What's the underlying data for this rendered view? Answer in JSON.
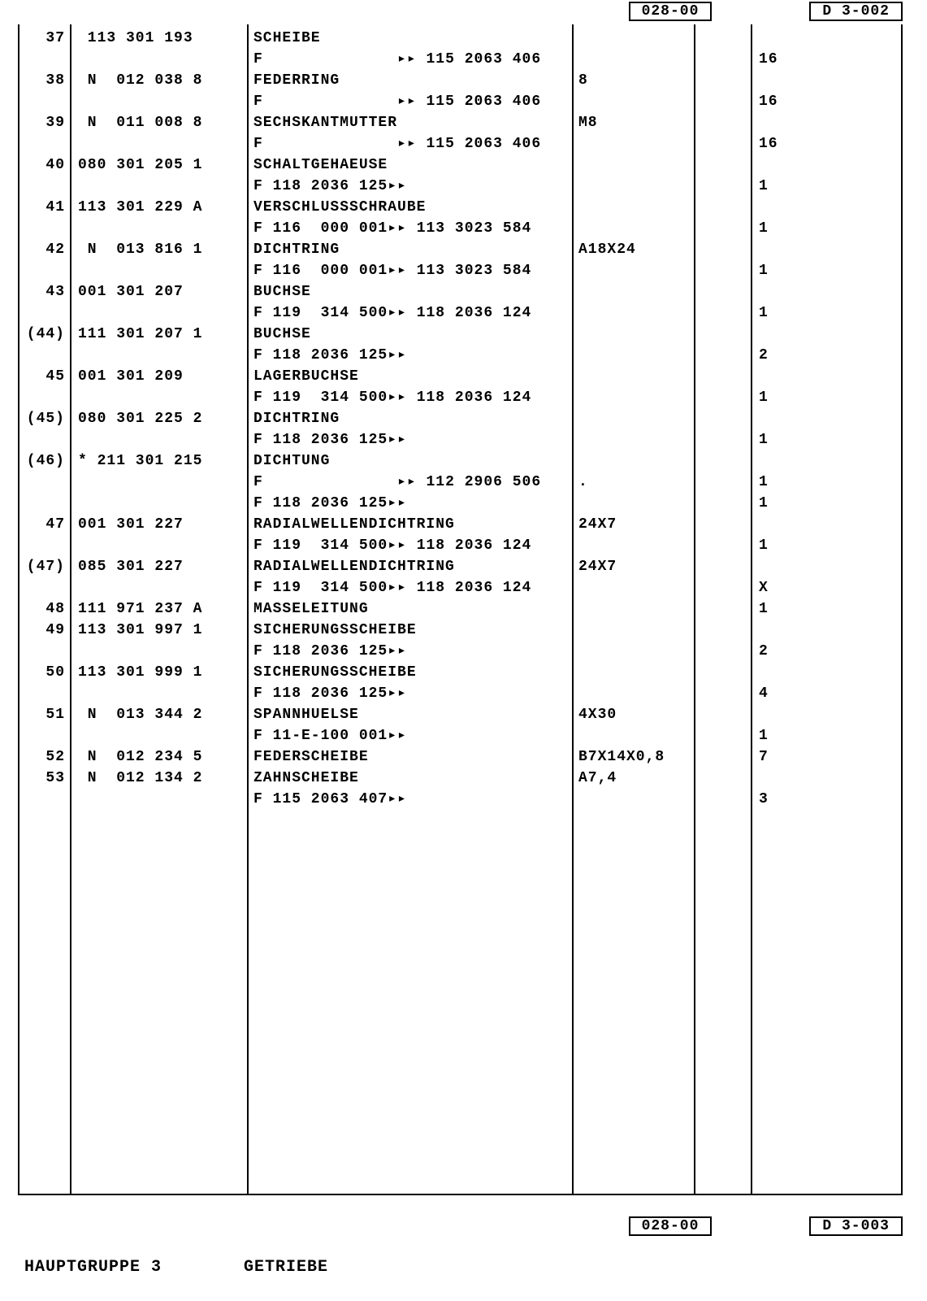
{
  "header": {
    "code1": "028-00",
    "code2": "D  3-002"
  },
  "footerCodes": {
    "code1": "028-00",
    "code2": "D  3-003"
  },
  "footer": {
    "group": "HAUPTGRUPPE   3",
    "title": "GETRIEBE"
  },
  "rows": [
    {
      "pos": "37",
      "part": " 113 301 193",
      "desc": "SCHEIBE",
      "spec": "",
      "x": "",
      "qty": ""
    },
    {
      "pos": "",
      "part": "",
      "desc": "F              ▸▸ 115 2063 406",
      "spec": "",
      "x": "",
      "qty": "16"
    },
    {
      "pos": "38",
      "part": " N  012 038 8",
      "desc": "FEDERRING",
      "spec": "8",
      "x": "",
      "qty": ""
    },
    {
      "pos": "",
      "part": "",
      "desc": "F              ▸▸ 115 2063 406",
      "spec": "",
      "x": "",
      "qty": "16"
    },
    {
      "pos": "39",
      "part": " N  011 008 8",
      "desc": "SECHSKANTMUTTER",
      "spec": "M8",
      "x": "",
      "qty": ""
    },
    {
      "pos": "",
      "part": "",
      "desc": "F              ▸▸ 115 2063 406",
      "spec": "",
      "x": "",
      "qty": "16"
    },
    {
      "pos": "40",
      "part": "080 301 205 1",
      "desc": "SCHALTGEHAEUSE",
      "spec": "",
      "x": "",
      "qty": ""
    },
    {
      "pos": "",
      "part": "",
      "desc": "F 118 2036 125▸▸",
      "spec": "",
      "x": "",
      "qty": "1"
    },
    {
      "pos": "41",
      "part": "113 301 229 A",
      "desc": "VERSCHLUSSSCHRAUBE",
      "spec": "",
      "x": "",
      "qty": ""
    },
    {
      "pos": "",
      "part": "",
      "desc": "F 116  000 001▸▸ 113 3023 584",
      "spec": "",
      "x": "",
      "qty": "1"
    },
    {
      "pos": "42",
      "part": " N  013 816 1",
      "desc": "DICHTRING",
      "spec": "A18X24",
      "x": "",
      "qty": ""
    },
    {
      "pos": "",
      "part": "",
      "desc": "F 116  000 001▸▸ 113 3023 584",
      "spec": "",
      "x": "",
      "qty": "1"
    },
    {
      "pos": "43",
      "part": "001 301 207",
      "desc": "BUCHSE",
      "spec": "",
      "x": "",
      "qty": ""
    },
    {
      "pos": "",
      "part": "",
      "desc": "F 119  314 500▸▸ 118 2036 124",
      "spec": "",
      "x": "",
      "qty": "1"
    },
    {
      "pos": "(44)",
      "part": "111 301 207 1",
      "desc": "BUCHSE",
      "spec": "",
      "x": "",
      "qty": ""
    },
    {
      "pos": "",
      "part": "",
      "desc": "F 118 2036 125▸▸",
      "spec": "",
      "x": "",
      "qty": "2"
    },
    {
      "pos": "45",
      "part": "001 301 209",
      "desc": "LAGERBUCHSE",
      "spec": "",
      "x": "",
      "qty": ""
    },
    {
      "pos": "",
      "part": "",
      "desc": "F 119  314 500▸▸ 118 2036 124",
      "spec": "",
      "x": "",
      "qty": "1"
    },
    {
      "pos": "(45)",
      "part": "080 301 225 2",
      "desc": "DICHTRING",
      "spec": "",
      "x": "",
      "qty": ""
    },
    {
      "pos": "",
      "part": "",
      "desc": "F 118 2036 125▸▸",
      "spec": "",
      "x": "",
      "qty": "1"
    },
    {
      "pos": "(46)",
      "part": "* 211 301 215",
      "desc": "DICHTUNG",
      "spec": "",
      "x": "",
      "qty": ""
    },
    {
      "pos": "",
      "part": "",
      "desc": "F              ▸▸ 112 2906 506",
      "spec": ".",
      "x": "",
      "qty": "1"
    },
    {
      "pos": "",
      "part": "",
      "desc": "F 118 2036 125▸▸",
      "spec": "",
      "x": "",
      "qty": "1"
    },
    {
      "pos": "47",
      "part": "001 301 227",
      "desc": "RADIALWELLENDICHTRING",
      "spec": "24X7",
      "x": "",
      "qty": ""
    },
    {
      "pos": "",
      "part": "",
      "desc": "F 119  314 500▸▸ 118 2036 124",
      "spec": "",
      "x": "",
      "qty": "1"
    },
    {
      "pos": "(47)",
      "part": "085 301 227",
      "desc": "RADIALWELLENDICHTRING",
      "spec": "24X7",
      "x": "",
      "qty": ""
    },
    {
      "pos": "",
      "part": "",
      "desc": "F 119  314 500▸▸ 118 2036 124",
      "spec": "",
      "x": "",
      "qty": "X"
    },
    {
      "pos": "48",
      "part": "111 971 237 A",
      "desc": "MASSELEITUNG",
      "spec": "",
      "x": "",
      "qty": "1"
    },
    {
      "pos": "49",
      "part": "113 301 997 1",
      "desc": "SICHERUNGSSCHEIBE",
      "spec": "",
      "x": "",
      "qty": ""
    },
    {
      "pos": "",
      "part": "",
      "desc": "F 118 2036 125▸▸",
      "spec": "",
      "x": "",
      "qty": "2"
    },
    {
      "pos": "50",
      "part": "113 301 999 1",
      "desc": "SICHERUNGSSCHEIBE",
      "spec": "",
      "x": "",
      "qty": ""
    },
    {
      "pos": "",
      "part": "",
      "desc": "F 118 2036 125▸▸",
      "spec": "",
      "x": "",
      "qty": "4"
    },
    {
      "pos": "51",
      "part": " N  013 344 2",
      "desc": "SPANNHUELSE",
      "spec": "4X30",
      "x": "",
      "qty": ""
    },
    {
      "pos": "",
      "part": "",
      "desc": "F 11-E-100 001▸▸",
      "spec": "",
      "x": "",
      "qty": "1"
    },
    {
      "pos": "52",
      "part": " N  012 234 5",
      "desc": "FEDERSCHEIBE",
      "spec": "B7X14X0,8",
      "x": "",
      "qty": "7"
    },
    {
      "pos": "53",
      "part": " N  012 134 2",
      "desc": "ZAHNSCHEIBE",
      "spec": "A7,4",
      "x": "",
      "qty": ""
    },
    {
      "pos": "",
      "part": "",
      "desc": "F 115 2063 407▸▸",
      "spec": "",
      "x": "",
      "qty": "3"
    }
  ]
}
